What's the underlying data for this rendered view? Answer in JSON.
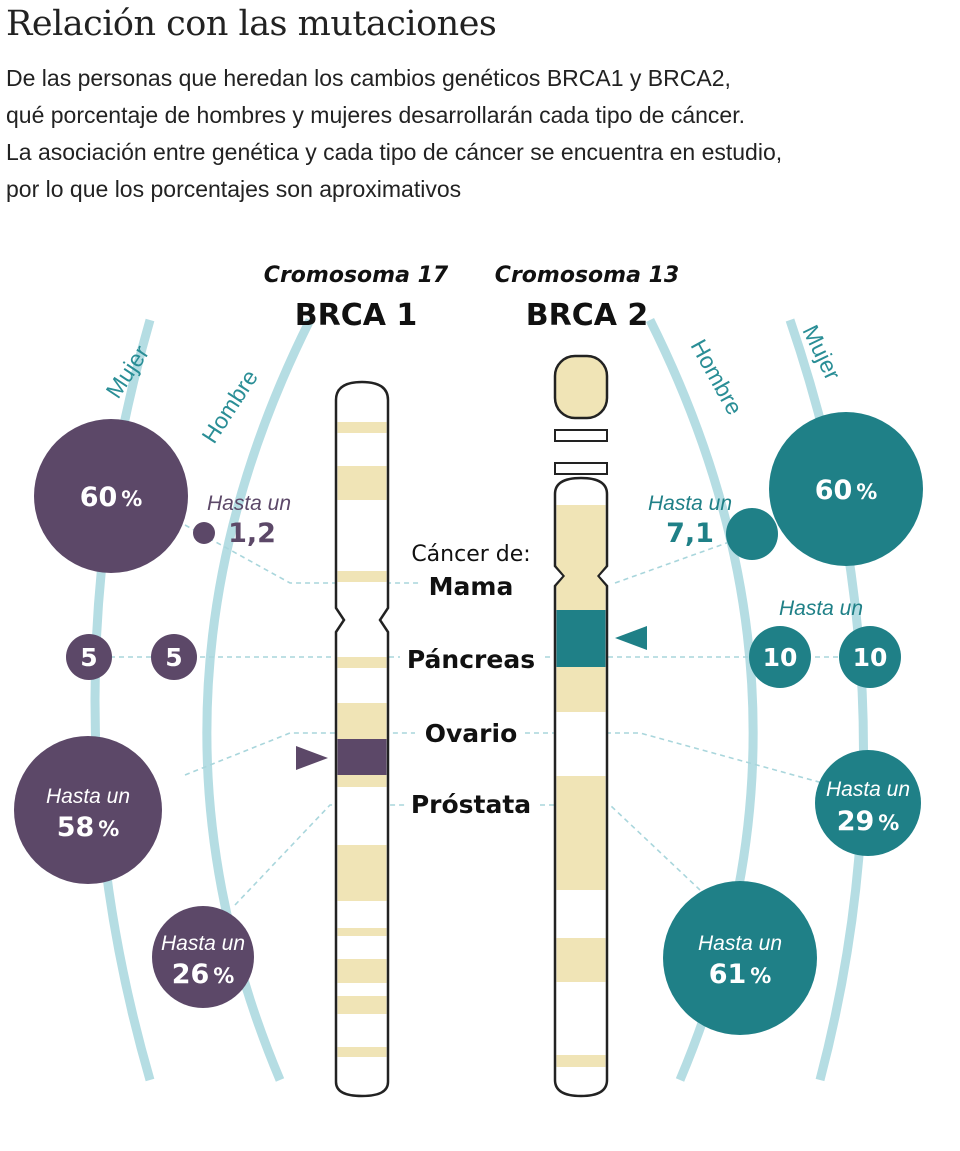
{
  "title": "Relación con las mutaciones",
  "subtitle": [
    "De las personas que heredan los cambios genéticos BRCA1 y BRCA2,",
    "qué porcentaje de hombres y mujeres desarrollarán cada tipo de cáncer.",
    "La asociación entre genética y cada tipo de cáncer se encuentra en estudio,",
    "por lo que los porcentajes son aproximativos"
  ],
  "colors": {
    "brca1": "#5c4868",
    "brca2": "#1f8087",
    "arc": "#b5dde3",
    "band": "#f0e4b6",
    "dash": "#a9d6dc"
  },
  "genes": {
    "brca1": {
      "chromosome": "Cromosoma 17",
      "name": "BRCA 1"
    },
    "brca2": {
      "chromosome": "Cromosoma 13",
      "name": "BRCA 2"
    }
  },
  "arc_labels": {
    "mujer": "Mujer",
    "hombre": "Hombre"
  },
  "cancer_heading": "Cáncer de:",
  "cancers": [
    "Mama",
    "Páncreas",
    "Ovario",
    "Próstata"
  ],
  "hasta_un": "Hasta un",
  "pct_sign": "%",
  "brca1": {
    "mama_mujer": "60",
    "mama_hombre": "1,2",
    "pancreas_mujer": "5",
    "pancreas_hombre": "5",
    "ovario_mujer": "58",
    "prostata_hombre": "26"
  },
  "brca2": {
    "mama_mujer": "60",
    "mama_hombre": "7,1",
    "pancreas_hombre": "10",
    "pancreas_mujer": "10",
    "ovario_mujer": "29",
    "prostata_hombre": "61"
  }
}
